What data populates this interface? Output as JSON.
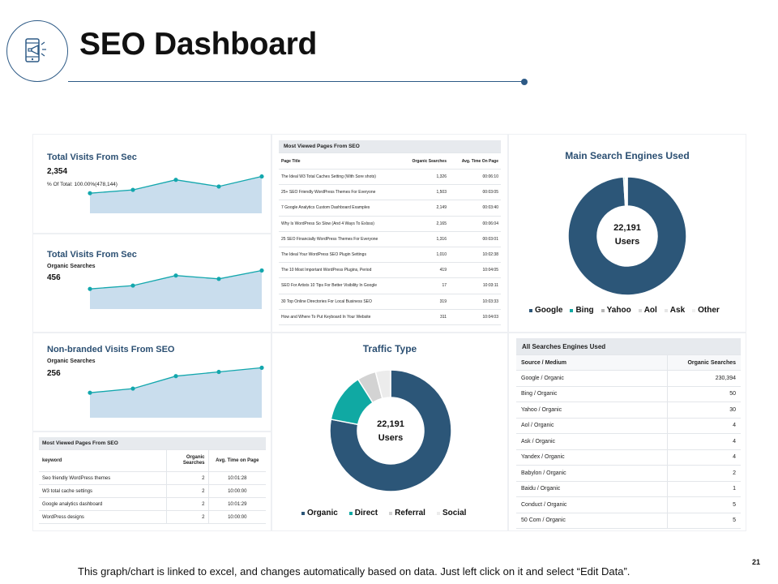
{
  "header": {
    "title": "SEO Dashboard"
  },
  "colors": {
    "navy": "#2d5a86",
    "donut_navy": "#2c5678",
    "teal": "#10a9a3",
    "grey": "#d3d3d3",
    "light": "#ececec",
    "area_fill": "#c9dded",
    "area_line": "#13a7ad",
    "title_blue": "#2b4f72"
  },
  "area_panels": [
    {
      "title": "Total Visits From Sec",
      "value": "2,354",
      "caption": "% Of Total: 100.00%(478,144)",
      "subcaption": ""
    },
    {
      "title": "Total Visits From Sec",
      "subcaption": "Organic Searches",
      "value": "456",
      "caption": ""
    },
    {
      "title": "Non-branded Visits From SEO",
      "subcaption": "Organic Searches",
      "value": "256",
      "caption": ""
    }
  ],
  "chart_data": [
    {
      "type": "area",
      "title": "Total Visits From Sec",
      "x": [
        1,
        2,
        3,
        4,
        5
      ],
      "values": [
        60,
        70,
        100,
        80,
        110
      ],
      "ylim": [
        0,
        150
      ]
    },
    {
      "type": "area",
      "title": "Total Visits From Sec",
      "x": [
        1,
        2,
        3,
        4,
        5
      ],
      "values": [
        60,
        70,
        100,
        90,
        115
      ],
      "ylim": [
        0,
        150
      ]
    },
    {
      "type": "area",
      "title": "Non-branded Visits From SEO",
      "x": [
        1,
        2,
        3,
        4,
        5
      ],
      "values": [
        60,
        70,
        100,
        110,
        120
      ],
      "ylim": [
        0,
        150
      ]
    },
    {
      "type": "pie",
      "title": "Main Search Engines Used",
      "center_value": "22,191",
      "center_label": "Users",
      "categories": [
        "Google",
        "Bing",
        "Yahoo",
        "Aol",
        "Ask",
        "Other"
      ],
      "values": [
        99.0,
        0.4,
        0.3,
        0.1,
        0.1,
        0.1
      ],
      "colors": [
        "#2c5678",
        "#10a9a3",
        "#b5b5b5",
        "#d9d9d9",
        "#e6e6e6",
        "#f0f0f0"
      ]
    },
    {
      "type": "pie",
      "title": "Traffic Type",
      "center_value": "22,191",
      "center_label": "Users",
      "categories": [
        "Organic",
        "Direct",
        "Referral",
        "Social"
      ],
      "values": [
        78,
        13,
        5,
        4
      ],
      "colors": [
        "#2c5678",
        "#10a9a3",
        "#d3d3d3",
        "#ececec"
      ]
    }
  ],
  "pages_table": {
    "header": "Most Viewed  Pages  From SEO",
    "columns": [
      "Page Title",
      "Organic Searches",
      "Avg. Time On Page"
    ],
    "rows": [
      [
        "The Ideal W3 Total  Caches Setting  (With Sore shots)",
        "1,326",
        "00:06:10"
      ],
      [
        "25+ SEO Friendly WordPress Themes For Everyone",
        "1,503",
        "00:03:05"
      ],
      [
        "7 Google  Analytics  Custom Dashboard Examples",
        "2,149",
        "00:03:40"
      ],
      [
        "Why Is WordPress So Slow (And 4 Ways To Exlsss)",
        "2,165",
        "00:06:04"
      ],
      [
        "25 SEO  Financially WordPress Themes For Everyone",
        "1,316",
        "00:03:01"
      ],
      [
        "The Ideal Your WordPress SEO  Plugin Settings",
        "1,010",
        "10:02:38"
      ],
      [
        "The 10 Most Important  WordPress Plugins, Period",
        "419",
        "10:04:05"
      ],
      [
        "SEO  For Artists  10 Tips For Better  Visibility  In Google",
        "17",
        "10:03:11"
      ],
      [
        "30 Top  Online Directories For Local Business  SEO",
        "319",
        "10:03:33"
      ],
      [
        "How and Where To Put Keyboard In Your Website",
        "311",
        "10:04:03"
      ]
    ]
  },
  "keyword_table": {
    "header": "Most Viewed Pages From SEO",
    "columns": [
      "keyword",
      "Organic Searches",
      "Avg. Time on Page"
    ],
    "rows": [
      [
        "Seo friendly WordPress themes",
        "2",
        "10:01:28"
      ],
      [
        "W3 total cache settings",
        "2",
        "10:00:00"
      ],
      [
        "Google analytics dashboard",
        "2",
        "10:01:29"
      ],
      [
        "WordPress designs",
        "2",
        "10:00:00"
      ]
    ]
  },
  "engines_table": {
    "header": "All  Searches Engines Used",
    "columns": [
      "Source / Medium",
      "Organic Searches"
    ],
    "rows": [
      [
        "Google / Organic",
        "230,394"
      ],
      [
        "Bing / Organic",
        "50"
      ],
      [
        "Yahoo / Organic",
        "30"
      ],
      [
        "Aol / Organic",
        "4"
      ],
      [
        "Ask / Organic",
        "4"
      ],
      [
        "Yandex  / Organic",
        "4"
      ],
      [
        "Babylon  / Organic",
        "2"
      ],
      [
        "Baidu / Organic",
        "1"
      ],
      [
        "Conduct  / Organic",
        "5"
      ],
      [
        "50 Com / Organic",
        "5"
      ]
    ]
  },
  "search_engines": {
    "title": "Main  Search Engines  Used",
    "center_value": "22,191",
    "center_label": "Users",
    "legend": [
      "Google",
      "Bing",
      "Yahoo",
      "Aol",
      "Ask",
      "Other"
    ]
  },
  "traffic": {
    "title": "Traffic Type",
    "center_value": "22,191",
    "center_label": "Users",
    "legend": [
      "Organic",
      "Direct",
      "Referral",
      "Social"
    ]
  },
  "footer": {
    "note": "This graph/chart is linked to excel, and changes automatically based on data.  Just left click on it and select “Edit Data”.",
    "page_number": "21"
  }
}
